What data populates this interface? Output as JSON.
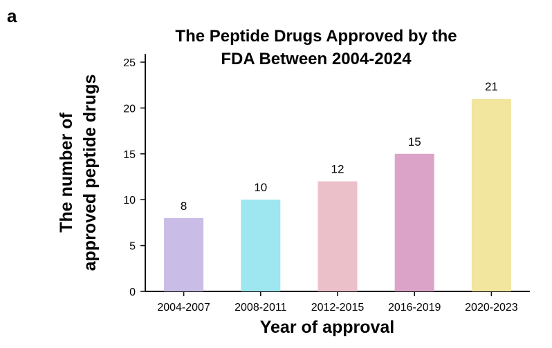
{
  "panel_label": "a",
  "chart_data": {
    "type": "bar",
    "title": [
      "The Peptide Drugs Approved by the",
      "FDA Between 2004-2024"
    ],
    "xlabel": "Year of approval",
    "ylabel": [
      "The number of",
      "approved peptide drugs"
    ],
    "categories": [
      "2004-2007",
      "2008-2011",
      "2012-2015",
      "2016-2019",
      "2020-2023"
    ],
    "values": [
      8,
      10,
      12,
      15,
      21
    ],
    "data_labels": [
      "8",
      "10",
      "12",
      "15",
      "21"
    ],
    "colors": [
      "#c9bce6",
      "#9ee6f0",
      "#ecc0c8",
      "#dca3c9",
      "#f2e59d"
    ],
    "ylim": [
      0,
      25
    ],
    "yticks": [
      0,
      5,
      10,
      15,
      20,
      25
    ],
    "grid": false,
    "legend": "none"
  }
}
